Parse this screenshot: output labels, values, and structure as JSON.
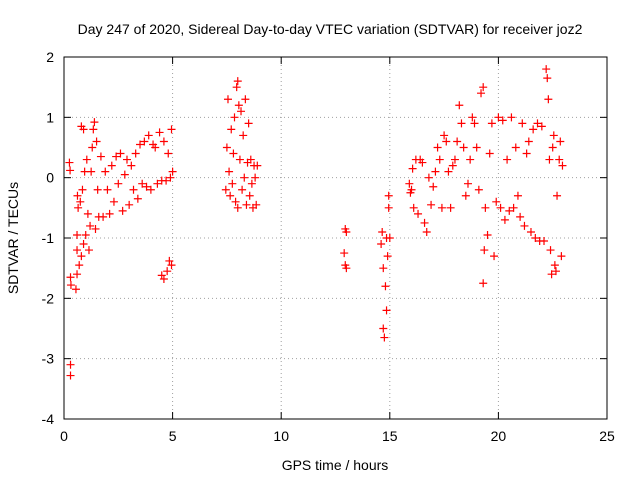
{
  "chart_data": {
    "type": "scatter",
    "title": "Day 247 of 2020, Sidereal Day-to-day VTEC variation (SDTVAR) for receiver joz2",
    "xlabel": "GPS time / hours",
    "ylabel": "SDTVAR / TECUs",
    "xlim": [
      0,
      25
    ],
    "ylim": [
      -4,
      2
    ],
    "xticks": [
      0,
      5,
      10,
      15,
      20,
      25
    ],
    "yticks": [
      -4,
      -3,
      -2,
      -1,
      0,
      1,
      2
    ],
    "grid": true,
    "marker": "+",
    "color": "#ff0000",
    "series": [
      {
        "name": "SDTVAR",
        "points": [
          [
            0.25,
            0.25
          ],
          [
            0.28,
            0.12
          ],
          [
            0.3,
            -1.65
          ],
          [
            0.32,
            -1.78
          ],
          [
            0.3,
            -3.1
          ],
          [
            0.3,
            -3.28
          ],
          [
            0.55,
            -1.85
          ],
          [
            0.6,
            -1.6
          ],
          [
            0.6,
            -0.95
          ],
          [
            0.6,
            -1.2
          ],
          [
            0.62,
            -0.3
          ],
          [
            0.65,
            -0.5
          ],
          [
            0.7,
            -1.45
          ],
          [
            0.75,
            -0.4
          ],
          [
            0.8,
            -1.3
          ],
          [
            0.85,
            -0.2
          ],
          [
            0.9,
            -1.1
          ],
          [
            0.95,
            0.1
          ],
          [
            0.8,
            0.85
          ],
          [
            0.9,
            0.8
          ],
          [
            1.0,
            -0.95
          ],
          [
            1.05,
            0.3
          ],
          [
            1.1,
            -0.6
          ],
          [
            1.15,
            -1.2
          ],
          [
            1.2,
            -0.8
          ],
          [
            1.25,
            0.1
          ],
          [
            1.3,
            0.5
          ],
          [
            1.35,
            0.8
          ],
          [
            1.4,
            0.92
          ],
          [
            1.45,
            -0.85
          ],
          [
            1.5,
            0.6
          ],
          [
            1.55,
            -0.2
          ],
          [
            1.6,
            -0.65
          ],
          [
            1.7,
            0.35
          ],
          [
            1.8,
            -0.65
          ],
          [
            1.9,
            0.1
          ],
          [
            2.0,
            -0.2
          ],
          [
            2.1,
            -0.6
          ],
          [
            2.2,
            0.2
          ],
          [
            2.3,
            -0.4
          ],
          [
            2.4,
            0.35
          ],
          [
            2.5,
            -0.1
          ],
          [
            2.6,
            0.4
          ],
          [
            2.7,
            -0.55
          ],
          [
            2.8,
            0.05
          ],
          [
            2.9,
            0.3
          ],
          [
            3.0,
            -0.45
          ],
          [
            3.1,
            0.2
          ],
          [
            3.2,
            -0.2
          ],
          [
            3.3,
            0.4
          ],
          [
            3.4,
            -0.35
          ],
          [
            3.5,
            0.55
          ],
          [
            3.6,
            -0.1
          ],
          [
            3.7,
            0.6
          ],
          [
            3.8,
            -0.15
          ],
          [
            3.9,
            0.7
          ],
          [
            4.0,
            -0.2
          ],
          [
            4.1,
            0.55
          ],
          [
            4.2,
            0.5
          ],
          [
            4.3,
            -0.1
          ],
          [
            4.4,
            0.75
          ],
          [
            4.5,
            -0.05
          ],
          [
            4.5,
            -1.62
          ],
          [
            4.6,
            -1.68
          ],
          [
            4.6,
            0.6
          ],
          [
            4.7,
            -0.05
          ],
          [
            4.75,
            -1.55
          ],
          [
            4.8,
            0.4
          ],
          [
            4.85,
            -1.38
          ],
          [
            4.9,
            0.0
          ],
          [
            4.95,
            0.8
          ],
          [
            4.95,
            -1.45
          ],
          [
            5.0,
            0.1
          ],
          [
            7.45,
            -0.2
          ],
          [
            7.5,
            0.5
          ],
          [
            7.55,
            1.3
          ],
          [
            7.6,
            0.1
          ],
          [
            7.65,
            -0.3
          ],
          [
            7.7,
            0.8
          ],
          [
            7.75,
            -0.1
          ],
          [
            7.8,
            0.4
          ],
          [
            7.85,
            1.0
          ],
          [
            7.9,
            -0.4
          ],
          [
            7.95,
            1.5
          ],
          [
            8.0,
            1.6
          ],
          [
            8.0,
            -0.5
          ],
          [
            8.05,
            1.2
          ],
          [
            8.1,
            0.3
          ],
          [
            8.15,
            1.1
          ],
          [
            8.2,
            -0.2
          ],
          [
            8.25,
            0.7
          ],
          [
            8.3,
            0.0
          ],
          [
            8.35,
            1.3
          ],
          [
            8.4,
            -0.45
          ],
          [
            8.45,
            0.25
          ],
          [
            8.5,
            0.9
          ],
          [
            8.55,
            -0.3
          ],
          [
            8.6,
            0.3
          ],
          [
            8.65,
            -0.1
          ],
          [
            8.7,
            -0.5
          ],
          [
            8.75,
            0.2
          ],
          [
            8.8,
            0.0
          ],
          [
            8.85,
            -0.45
          ],
          [
            8.9,
            0.2
          ],
          [
            12.95,
            -0.85
          ],
          [
            13.0,
            -0.9
          ],
          [
            12.9,
            -1.25
          ],
          [
            12.95,
            -1.45
          ],
          [
            13.0,
            -1.5
          ],
          [
            14.6,
            -1.1
          ],
          [
            14.65,
            -0.9
          ],
          [
            14.7,
            -1.5
          ],
          [
            14.7,
            -2.5
          ],
          [
            14.75,
            -2.65
          ],
          [
            14.8,
            -1.8
          ],
          [
            14.85,
            -2.2
          ],
          [
            14.9,
            -1.3
          ],
          [
            14.95,
            -0.5
          ],
          [
            14.95,
            -0.3
          ],
          [
            15.0,
            -1.0
          ],
          [
            14.85,
            -1.0
          ],
          [
            15.9,
            -0.1
          ],
          [
            15.95,
            -0.25
          ],
          [
            16.0,
            -0.2
          ],
          [
            16.05,
            0.15
          ],
          [
            16.1,
            -0.5
          ],
          [
            16.2,
            0.3
          ],
          [
            16.3,
            -0.6
          ],
          [
            16.4,
            0.3
          ],
          [
            16.5,
            0.25
          ],
          [
            16.6,
            -0.75
          ],
          [
            16.7,
            -0.9
          ],
          [
            16.8,
            0.0
          ],
          [
            16.9,
            -0.45
          ],
          [
            17.0,
            -0.15
          ],
          [
            17.1,
            0.1
          ],
          [
            17.2,
            0.5
          ],
          [
            17.3,
            0.3
          ],
          [
            17.4,
            -0.5
          ],
          [
            17.5,
            0.7
          ],
          [
            17.6,
            0.6
          ],
          [
            17.7,
            0.1
          ],
          [
            17.8,
            -0.5
          ],
          [
            17.9,
            0.2
          ],
          [
            18.0,
            0.3
          ],
          [
            18.1,
            0.6
          ],
          [
            18.2,
            1.2
          ],
          [
            18.3,
            0.9
          ],
          [
            18.4,
            0.5
          ],
          [
            18.5,
            -0.3
          ],
          [
            18.6,
            -0.1
          ],
          [
            18.7,
            0.3
          ],
          [
            18.8,
            1.0
          ],
          [
            18.9,
            0.9
          ],
          [
            19.0,
            0.5
          ],
          [
            19.1,
            -0.2
          ],
          [
            19.2,
            1.4
          ],
          [
            19.3,
            1.5
          ],
          [
            19.3,
            -1.75
          ],
          [
            19.35,
            -1.2
          ],
          [
            19.4,
            -0.5
          ],
          [
            19.5,
            -0.95
          ],
          [
            19.6,
            0.4
          ],
          [
            19.7,
            0.9
          ],
          [
            19.8,
            -1.3
          ],
          [
            19.9,
            -0.4
          ],
          [
            20.0,
            1.0
          ],
          [
            20.1,
            -0.5
          ],
          [
            20.2,
            0.95
          ],
          [
            20.3,
            -0.7
          ],
          [
            20.4,
            0.3
          ],
          [
            20.5,
            -0.55
          ],
          [
            20.6,
            1.0
          ],
          [
            20.7,
            -0.5
          ],
          [
            20.8,
            0.5
          ],
          [
            20.9,
            -0.3
          ],
          [
            21.0,
            -0.65
          ],
          [
            21.1,
            0.9
          ],
          [
            21.2,
            -0.8
          ],
          [
            21.3,
            0.4
          ],
          [
            21.4,
            0.6
          ],
          [
            21.5,
            -0.9
          ],
          [
            21.6,
            0.8
          ],
          [
            21.7,
            -1.0
          ],
          [
            21.8,
            0.9
          ],
          [
            21.9,
            -1.05
          ],
          [
            22.0,
            0.85
          ],
          [
            22.1,
            -1.05
          ],
          [
            22.2,
            1.8
          ],
          [
            22.25,
            1.65
          ],
          [
            22.3,
            1.3
          ],
          [
            22.35,
            0.3
          ],
          [
            22.4,
            -1.2
          ],
          [
            22.45,
            -1.6
          ],
          [
            22.5,
            0.5
          ],
          [
            22.55,
            0.7
          ],
          [
            22.6,
            -1.45
          ],
          [
            22.65,
            -1.55
          ],
          [
            22.7,
            -0.3
          ],
          [
            22.8,
            0.3
          ],
          [
            22.85,
            0.6
          ],
          [
            22.9,
            -1.3
          ],
          [
            22.95,
            0.2
          ]
        ]
      }
    ]
  }
}
